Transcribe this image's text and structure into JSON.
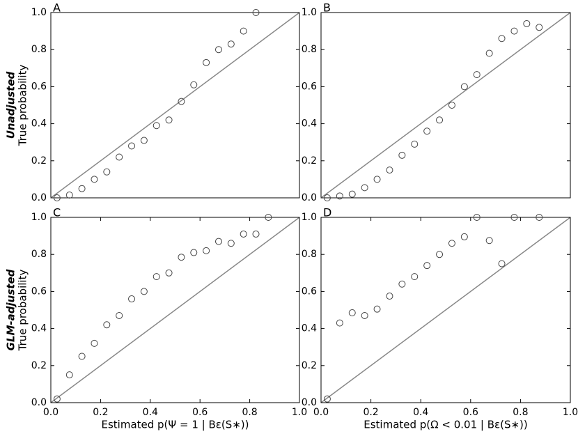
{
  "chart_data": [
    {
      "type": "scatter",
      "panel_label": "A",
      "row_label": "Unadjusted",
      "ylabel": "True probability",
      "x": [
        0.025,
        0.075,
        0.125,
        0.175,
        0.225,
        0.275,
        0.325,
        0.375,
        0.425,
        0.475,
        0.525,
        0.575,
        0.625,
        0.675,
        0.725,
        0.775,
        0.825
      ],
      "series": [
        {
          "color": "#444444",
          "values": [
            0.0,
            0.015,
            0.05,
            0.1,
            0.14,
            0.22,
            0.28,
            0.31,
            0.39,
            0.42,
            0.52,
            0.61,
            0.73,
            0.8,
            0.83,
            0.9,
            1.0
          ]
        }
      ],
      "xlim": [
        0,
        1
      ],
      "ylim": [
        0,
        1
      ],
      "yticks": [
        {
          "value": 0,
          "label": "0.0"
        },
        {
          "value": 0.2,
          "label": "0.2"
        },
        {
          "value": 0.4,
          "label": "0.4"
        },
        {
          "value": 0.6,
          "label": "0.6"
        },
        {
          "value": 0.8,
          "label": "0.8"
        },
        {
          "value": 1,
          "label": "1.0"
        }
      ],
      "identity_line": true,
      "line_color": "#888888"
    },
    {
      "type": "scatter",
      "panel_label": "B",
      "x": [
        0.025,
        0.075,
        0.125,
        0.175,
        0.225,
        0.275,
        0.325,
        0.375,
        0.425,
        0.475,
        0.525,
        0.575,
        0.625,
        0.675,
        0.725,
        0.775,
        0.825,
        0.875
      ],
      "series": [
        {
          "color": "#444444",
          "values": [
            0.0,
            0.01,
            0.02,
            0.055,
            0.1,
            0.15,
            0.23,
            0.29,
            0.36,
            0.42,
            0.5,
            0.6,
            0.665,
            0.78,
            0.86,
            0.9,
            0.94,
            0.92
          ]
        }
      ],
      "xlim": [
        0,
        1
      ],
      "ylim": [
        0,
        1
      ],
      "yticks": [
        {
          "value": 0,
          "label": "0.0"
        },
        {
          "value": 0.2,
          "label": "0.2"
        },
        {
          "value": 0.4,
          "label": "0.4"
        },
        {
          "value": 0.6,
          "label": "0.6"
        },
        {
          "value": 0.8,
          "label": "0.8"
        },
        {
          "value": 1,
          "label": "1.0"
        }
      ],
      "identity_line": true,
      "line_color": "#888888"
    },
    {
      "type": "scatter",
      "panel_label": "C",
      "row_label": "GLM-adjusted",
      "ylabel": "True probability",
      "xlabel": "Estimated p(Ψ = 1 | Bε(S∗))",
      "x": [
        0.025,
        0.075,
        0.125,
        0.175,
        0.225,
        0.275,
        0.325,
        0.375,
        0.425,
        0.475,
        0.525,
        0.575,
        0.625,
        0.675,
        0.725,
        0.775,
        0.825,
        0.875
      ],
      "series": [
        {
          "color": "#444444",
          "values": [
            0.02,
            0.15,
            0.25,
            0.32,
            0.42,
            0.47,
            0.56,
            0.6,
            0.68,
            0.7,
            0.785,
            0.81,
            0.82,
            0.87,
            0.86,
            0.91,
            0.91,
            1.0
          ]
        }
      ],
      "xlim": [
        0,
        1
      ],
      "ylim": [
        0,
        1
      ],
      "xticks": [
        {
          "value": 0,
          "label": "0.0"
        },
        {
          "value": 0.2,
          "label": "0.2"
        },
        {
          "value": 0.4,
          "label": "0.4"
        },
        {
          "value": 0.6,
          "label": "0.6"
        },
        {
          "value": 0.8,
          "label": "0.8"
        },
        {
          "value": 1,
          "label": "1.0"
        }
      ],
      "yticks": [
        {
          "value": 0,
          "label": "0.0"
        },
        {
          "value": 0.2,
          "label": "0.2"
        },
        {
          "value": 0.4,
          "label": "0.4"
        },
        {
          "value": 0.6,
          "label": "0.6"
        },
        {
          "value": 0.8,
          "label": "0.8"
        },
        {
          "value": 1,
          "label": "1.0"
        }
      ],
      "identity_line": true,
      "line_color": "#888888"
    },
    {
      "type": "scatter",
      "panel_label": "D",
      "xlabel": "Estimated p(Ω < 0.01 | Bε(S∗))",
      "x": [
        0.025,
        0.075,
        0.125,
        0.175,
        0.225,
        0.275,
        0.325,
        0.375,
        0.425,
        0.475,
        0.525,
        0.575,
        0.625,
        0.675,
        0.725,
        0.775,
        0.875
      ],
      "series": [
        {
          "color": "#444444",
          "values": [
            0.02,
            0.43,
            0.485,
            0.47,
            0.505,
            0.575,
            0.64,
            0.68,
            0.74,
            0.8,
            0.86,
            0.895,
            1.0,
            0.875,
            0.75,
            1.0,
            1.0
          ]
        }
      ],
      "xlim": [
        0,
        1
      ],
      "ylim": [
        0,
        1
      ],
      "xticks": [
        {
          "value": 0,
          "label": "0.0"
        },
        {
          "value": 0.2,
          "label": "0.2"
        },
        {
          "value": 0.4,
          "label": "0.4"
        },
        {
          "value": 0.6,
          "label": "0.6"
        },
        {
          "value": 0.8,
          "label": "0.8"
        },
        {
          "value": 1,
          "label": "1.0"
        }
      ],
      "yticks": [
        {
          "value": 0,
          "label": "0.0"
        },
        {
          "value": 0.2,
          "label": "0.2"
        },
        {
          "value": 0.4,
          "label": "0.4"
        },
        {
          "value": 0.6,
          "label": "0.6"
        },
        {
          "value": 0.8,
          "label": "0.8"
        },
        {
          "value": 1,
          "label": "1.0"
        }
      ],
      "identity_line": true,
      "line_color": "#888888"
    }
  ]
}
